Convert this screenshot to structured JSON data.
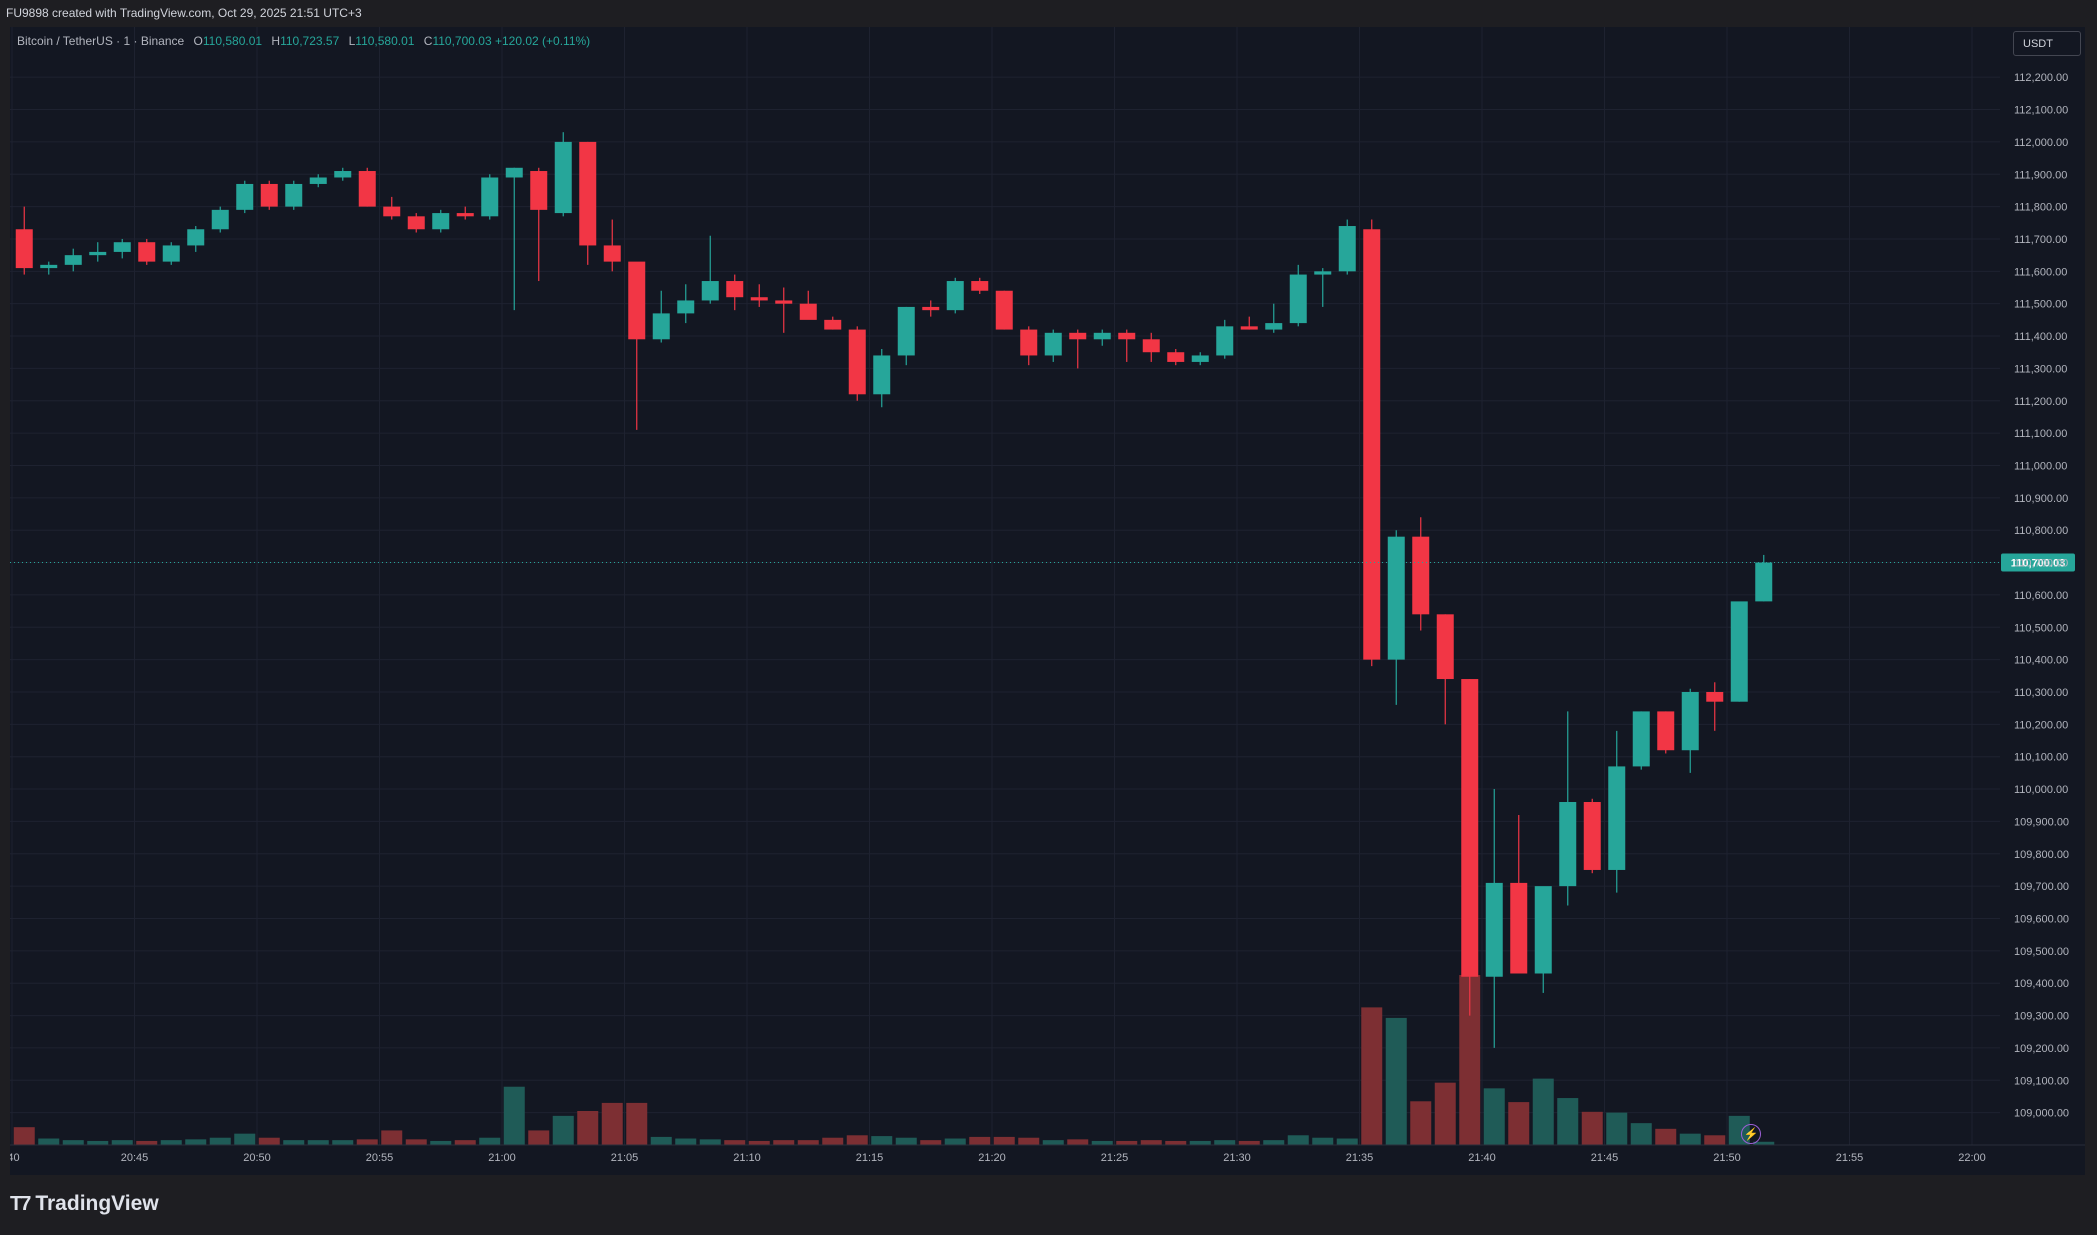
{
  "header": {
    "watermark": "FU9898 created with TradingView.com, Oct 29, 2025 21:51 UTC+3"
  },
  "legend": {
    "symbol": "Bitcoin / TetherUS · 1 · Binance",
    "open_label": "O",
    "open": "110,580.01",
    "high_label": "H",
    "high": "110,723.57",
    "low_label": "L",
    "low": "110,580.01",
    "close_label": "C",
    "close": "110,700.03",
    "change": "+120.02 (+0.11%)"
  },
  "currency_badge": "USDT",
  "brand": {
    "icon": "tradingview-logo-icon",
    "text": "TradingView"
  },
  "colors": {
    "up": "#26a69a",
    "down": "#f23645",
    "background": "#131722",
    "grid": "#1e2230",
    "text": "#b2b5be"
  },
  "chart_data": {
    "type": "candlestick",
    "price_axis": {
      "range": [
        108900,
        112250
      ],
      "ticks": [
        "112,200.00",
        "112,100.00",
        "112,000.00",
        "111,900.00",
        "111,800.00",
        "111,700.00",
        "111,600.00",
        "111,500.00",
        "111,400.00",
        "111,300.00",
        "111,200.00",
        "111,100.00",
        "111,000.00",
        "110,900.00",
        "110,800.00",
        "110,700.00",
        "110,600.00",
        "110,500.00",
        "110,400.00",
        "110,300.00",
        "110,200.00",
        "110,100.00",
        "110,000.00",
        "109,900.00",
        "109,800.00",
        "109,700.00",
        "109,600.00",
        "109,500.00",
        "109,400.00",
        "109,300.00",
        "109,200.00",
        "109,100.00",
        "109,000.00"
      ],
      "last_price": "110,700.03"
    },
    "time_axis": {
      "ticks": [
        {
          "label": ":40",
          "minute": -0.5
        },
        {
          "label": "20:45",
          "minute": 4.5
        },
        {
          "label": "20:50",
          "minute": 9.5
        },
        {
          "label": "20:55",
          "minute": 14.5
        },
        {
          "label": "21:00",
          "minute": 19.5
        },
        {
          "label": "21:05",
          "minute": 24.5
        },
        {
          "label": "21:10",
          "minute": 29.5
        },
        {
          "label": "21:15",
          "minute": 34.5
        },
        {
          "label": "21:20",
          "minute": 39.5
        },
        {
          "label": "21:25",
          "minute": 44.5
        },
        {
          "label": "21:30",
          "minute": 49.5
        },
        {
          "label": "21:35",
          "minute": 54.5
        },
        {
          "label": "21:40",
          "minute": 59.5
        },
        {
          "label": "21:45",
          "minute": 64.5
        },
        {
          "label": "21:50",
          "minute": 69.5
        },
        {
          "label": "21:55",
          "minute": 74.5
        },
        {
          "label": "22:00",
          "minute": 79.5
        }
      ]
    },
    "candles": [
      {
        "o": 111730,
        "h": 111800,
        "l": 111590,
        "c": 111610,
        "v": 22
      },
      {
        "o": 111610,
        "h": 111630,
        "l": 111590,
        "c": 111620,
        "v": 8
      },
      {
        "o": 111620,
        "h": 111670,
        "l": 111600,
        "c": 111650,
        "v": 6
      },
      {
        "o": 111650,
        "h": 111690,
        "l": 111630,
        "c": 111660,
        "v": 5
      },
      {
        "o": 111660,
        "h": 111700,
        "l": 111640,
        "c": 111690,
        "v": 6
      },
      {
        "o": 111690,
        "h": 111700,
        "l": 111620,
        "c": 111630,
        "v": 5
      },
      {
        "o": 111630,
        "h": 111690,
        "l": 111620,
        "c": 111680,
        "v": 6
      },
      {
        "o": 111680,
        "h": 111740,
        "l": 111660,
        "c": 111730,
        "v": 7
      },
      {
        "o": 111730,
        "h": 111800,
        "l": 111720,
        "c": 111790,
        "v": 9
      },
      {
        "o": 111790,
        "h": 111880,
        "l": 111780,
        "c": 111870,
        "v": 14
      },
      {
        "o": 111870,
        "h": 111880,
        "l": 111790,
        "c": 111800,
        "v": 9
      },
      {
        "o": 111800,
        "h": 111880,
        "l": 111790,
        "c": 111870,
        "v": 6
      },
      {
        "o": 111870,
        "h": 111900,
        "l": 111860,
        "c": 111890,
        "v": 6
      },
      {
        "o": 111890,
        "h": 111920,
        "l": 111880,
        "c": 111910,
        "v": 6
      },
      {
        "o": 111910,
        "h": 111920,
        "l": 111800,
        "c": 111800,
        "v": 7
      },
      {
        "o": 111800,
        "h": 111830,
        "l": 111760,
        "c": 111770,
        "v": 18
      },
      {
        "o": 111770,
        "h": 111780,
        "l": 111720,
        "c": 111730,
        "v": 7
      },
      {
        "o": 111730,
        "h": 111790,
        "l": 111720,
        "c": 111780,
        "v": 5
      },
      {
        "o": 111780,
        "h": 111800,
        "l": 111760,
        "c": 111770,
        "v": 6
      },
      {
        "o": 111770,
        "h": 111900,
        "l": 111760,
        "c": 111890,
        "v": 9
      },
      {
        "o": 111890,
        "h": 111920,
        "l": 111480,
        "c": 111920,
        "v": 72
      },
      {
        "o": 111910,
        "h": 111920,
        "l": 111570,
        "c": 111790,
        "v": 18
      },
      {
        "o": 111780,
        "h": 112030,
        "l": 111770,
        "c": 112000,
        "v": 36
      },
      {
        "o": 112000,
        "h": 112000,
        "l": 111620,
        "c": 111680,
        "v": 42
      },
      {
        "o": 111680,
        "h": 111760,
        "l": 111600,
        "c": 111630,
        "v": 52
      },
      {
        "o": 111630,
        "h": 111620,
        "l": 111110,
        "c": 111390,
        "v": 52
      },
      {
        "o": 111390,
        "h": 111540,
        "l": 111380,
        "c": 111470,
        "v": 10
      },
      {
        "o": 111470,
        "h": 111560,
        "l": 111440,
        "c": 111510,
        "v": 8
      },
      {
        "o": 111510,
        "h": 111710,
        "l": 111500,
        "c": 111570,
        "v": 7
      },
      {
        "o": 111570,
        "h": 111590,
        "l": 111480,
        "c": 111520,
        "v": 6
      },
      {
        "o": 111520,
        "h": 111560,
        "l": 111490,
        "c": 111510,
        "v": 5
      },
      {
        "o": 111510,
        "h": 111550,
        "l": 111410,
        "c": 111500,
        "v": 6
      },
      {
        "o": 111500,
        "h": 111540,
        "l": 111460,
        "c": 111450,
        "v": 6
      },
      {
        "o": 111450,
        "h": 111460,
        "l": 111420,
        "c": 111420,
        "v": 9
      },
      {
        "o": 111420,
        "h": 111430,
        "l": 111200,
        "c": 111220,
        "v": 12
      },
      {
        "o": 111220,
        "h": 111360,
        "l": 111180,
        "c": 111340,
        "v": 11
      },
      {
        "o": 111340,
        "h": 111490,
        "l": 111310,
        "c": 111490,
        "v": 9
      },
      {
        "o": 111490,
        "h": 111510,
        "l": 111460,
        "c": 111480,
        "v": 6
      },
      {
        "o": 111480,
        "h": 111580,
        "l": 111470,
        "c": 111570,
        "v": 8
      },
      {
        "o": 111570,
        "h": 111580,
        "l": 111530,
        "c": 111540,
        "v": 10
      },
      {
        "o": 111540,
        "h": 111540,
        "l": 111420,
        "c": 111420,
        "v": 10
      },
      {
        "o": 111420,
        "h": 111430,
        "l": 111310,
        "c": 111340,
        "v": 9
      },
      {
        "o": 111340,
        "h": 111420,
        "l": 111320,
        "c": 111410,
        "v": 6
      },
      {
        "o": 111410,
        "h": 111420,
        "l": 111300,
        "c": 111390,
        "v": 7
      },
      {
        "o": 111390,
        "h": 111420,
        "l": 111370,
        "c": 111410,
        "v": 5
      },
      {
        "o": 111410,
        "h": 111420,
        "l": 111320,
        "c": 111390,
        "v": 5
      },
      {
        "o": 111390,
        "h": 111410,
        "l": 111320,
        "c": 111350,
        "v": 6
      },
      {
        "o": 111350,
        "h": 111360,
        "l": 111310,
        "c": 111320,
        "v": 5
      },
      {
        "o": 111320,
        "h": 111350,
        "l": 111310,
        "c": 111340,
        "v": 5
      },
      {
        "o": 111340,
        "h": 111450,
        "l": 111330,
        "c": 111430,
        "v": 6
      },
      {
        "o": 111430,
        "h": 111460,
        "l": 111420,
        "c": 111420,
        "v": 5
      },
      {
        "o": 111420,
        "h": 111500,
        "l": 111410,
        "c": 111440,
        "v": 6
      },
      {
        "o": 111440,
        "h": 111620,
        "l": 111430,
        "c": 111590,
        "v": 12
      },
      {
        "o": 111590,
        "h": 111610,
        "l": 111490,
        "c": 111600,
        "v": 9
      },
      {
        "o": 111600,
        "h": 111760,
        "l": 111590,
        "c": 111740,
        "v": 8
      },
      {
        "o": 111730,
        "h": 111760,
        "l": 110380,
        "c": 110400,
        "v": 170
      },
      {
        "o": 110400,
        "h": 110800,
        "l": 110260,
        "c": 110780,
        "v": 157
      },
      {
        "o": 110780,
        "h": 110840,
        "l": 110490,
        "c": 110540,
        "v": 54
      },
      {
        "o": 110540,
        "h": 110540,
        "l": 110200,
        "c": 110340,
        "v": 77
      },
      {
        "o": 110340,
        "h": 110340,
        "l": 109300,
        "c": 109420,
        "v": 210
      },
      {
        "o": 109420,
        "h": 110000,
        "l": 109200,
        "c": 109710,
        "v": 70
      },
      {
        "o": 109710,
        "h": 109920,
        "l": 109430,
        "c": 109430,
        "v": 53
      },
      {
        "o": 109430,
        "h": 109690,
        "l": 109370,
        "c": 109700,
        "v": 82
      },
      {
        "o": 109700,
        "h": 110240,
        "l": 109640,
        "c": 109960,
        "v": 58
      },
      {
        "o": 109960,
        "h": 109970,
        "l": 109740,
        "c": 109750,
        "v": 41
      },
      {
        "o": 109750,
        "h": 110180,
        "l": 109680,
        "c": 110070,
        "v": 40
      },
      {
        "o": 110070,
        "h": 110240,
        "l": 110060,
        "c": 110240,
        "v": 27
      },
      {
        "o": 110240,
        "h": 110240,
        "l": 110110,
        "c": 110120,
        "v": 20
      },
      {
        "o": 110120,
        "h": 110310,
        "l": 110050,
        "c": 110300,
        "v": 14
      },
      {
        "o": 110300,
        "h": 110330,
        "l": 110180,
        "c": 110270,
        "v": 12
      },
      {
        "o": 110270,
        "h": 110570,
        "l": 110270,
        "c": 110580,
        "v": 36
      },
      {
        "o": 110580,
        "h": 110723.57,
        "l": 110580,
        "c": 110700.03,
        "v": 4
      }
    ]
  }
}
